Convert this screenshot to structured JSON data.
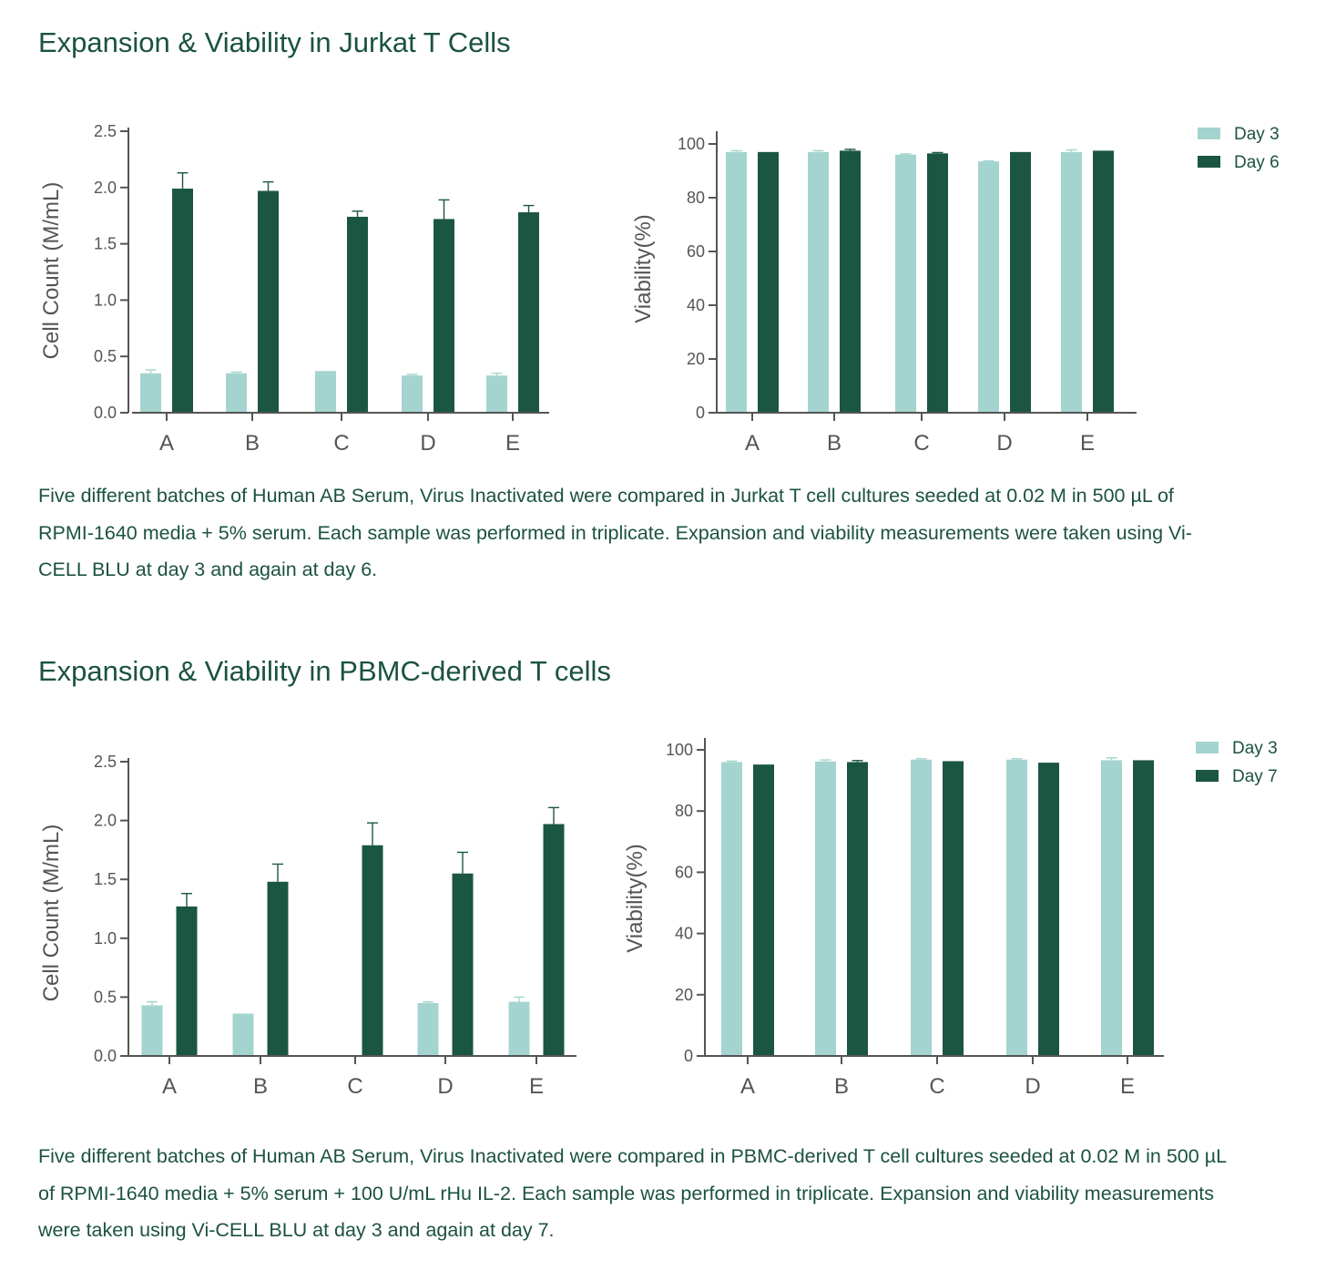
{
  "sections": [
    {
      "title": "Expansion & Viability in Jurkat T Cells",
      "caption": "Five different batches of Human AB Serum, Virus Inactivated were compared in Jurkat T cell cultures seeded at 0.02 M in 500 µL of RPMI-1640 media + 5% serum. Each sample was performed in triplicate. Expansion and viability measurements were taken using Vi-CELL BLU at day 3 and again at day 6."
    },
    {
      "title": "Expansion & Viability in PBMC-derived T cells",
      "caption": "Five different batches of Human AB Serum, Virus Inactivated were compared in PBMC-derived T cell cultures seeded at 0.02 M in 500 µL of RPMI-1640 media + 5% serum + 100 U/mL rHu IL-2. Each sample was performed in triplicate. Expansion and viability measurements were taken using Vi-CELL BLU at day 3 and again at day 7."
    }
  ],
  "colors": {
    "day3": "#a4d4cf",
    "day_late": "#1b5643",
    "axis": "#555555",
    "text": "#1b5240"
  },
  "chart_data": [
    {
      "type": "bar",
      "ylabel": "Cell Count (M/mL)",
      "categories": [
        "A",
        "B",
        "C",
        "D",
        "E"
      ],
      "ylim": [
        0,
        2.5
      ],
      "yticks": [
        "0.0",
        "0.5",
        "1.0",
        "1.5",
        "2.0",
        "2.5"
      ],
      "series": [
        {
          "values": [
            0.35,
            0.35,
            0.37,
            0.33,
            0.33
          ],
          "errors": [
            0.03,
            0.01,
            0,
            0.01,
            0.02
          ]
        },
        {
          "values": [
            1.99,
            1.97,
            1.74,
            1.72,
            1.78
          ],
          "errors": [
            0.14,
            0.08,
            0.05,
            0.17,
            0.06
          ]
        }
      ]
    },
    {
      "type": "bar",
      "ylabel": "Viability(%)",
      "categories": [
        "A",
        "B",
        "C",
        "D",
        "E"
      ],
      "ylim": [
        0,
        100
      ],
      "yticks": [
        "0",
        "20",
        "40",
        "60",
        "80",
        "100"
      ],
      "legend_position": "top-right",
      "series": [
        {
          "name": "Day 3",
          "values": [
            97,
            97,
            96,
            93.5,
            97
          ],
          "errors": [
            0.5,
            0.5,
            0.3,
            0.2,
            0.8
          ]
        },
        {
          "name": "Day 6",
          "values": [
            97,
            97.5,
            96.5,
            97,
            97.5
          ],
          "errors": [
            0,
            0.5,
            0.3,
            0,
            0
          ]
        }
      ]
    },
    {
      "type": "bar",
      "ylabel": "Cell Count (M/mL)",
      "categories": [
        "A",
        "B",
        "C",
        "D",
        "E"
      ],
      "ylim": [
        0,
        2.5
      ],
      "yticks": [
        "0.0",
        "0.5",
        "1.0",
        "1.5",
        "2.0",
        "2.5"
      ],
      "series": [
        {
          "values": [
            0.43,
            0.36,
            0,
            0.45,
            0.46
          ],
          "errors": [
            0.03,
            0,
            0,
            0.01,
            0.04
          ]
        },
        {
          "values": [
            1.27,
            1.48,
            1.79,
            1.55,
            1.97
          ],
          "errors": [
            0.11,
            0.15,
            0.19,
            0.18,
            0.14
          ]
        }
      ]
    },
    {
      "type": "bar",
      "ylabel": "Viability(%)",
      "categories": [
        "A",
        "B",
        "C",
        "D",
        "E"
      ],
      "ylim": [
        0,
        100
      ],
      "yticks": [
        "0",
        "20",
        "40",
        "60",
        "80",
        "100"
      ],
      "legend_position": "top-right",
      "series": [
        {
          "name": "Day 3",
          "values": [
            96,
            96.2,
            96.8,
            96.8,
            96.6
          ],
          "errors": [
            0.3,
            0.5,
            0.3,
            0.3,
            0.8
          ]
        },
        {
          "name": "Day 7",
          "values": [
            95.2,
            96,
            96.3,
            95.8,
            96.6
          ],
          "errors": [
            0,
            0.5,
            0,
            0,
            0
          ]
        }
      ]
    }
  ]
}
